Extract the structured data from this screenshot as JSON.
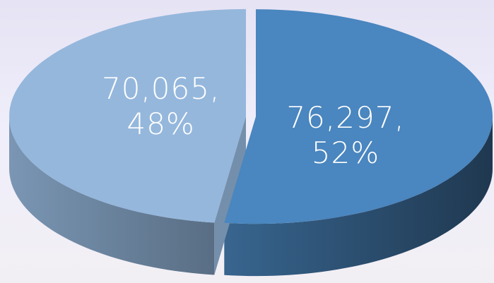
{
  "chart_data": {
    "type": "pie",
    "values": [
      76297,
      70065
    ],
    "value_labels": [
      "76,297,\n52%",
      "70,065,\n48%"
    ],
    "colors": [
      "#4a86bf",
      "#95b7dc"
    ]
  }
}
